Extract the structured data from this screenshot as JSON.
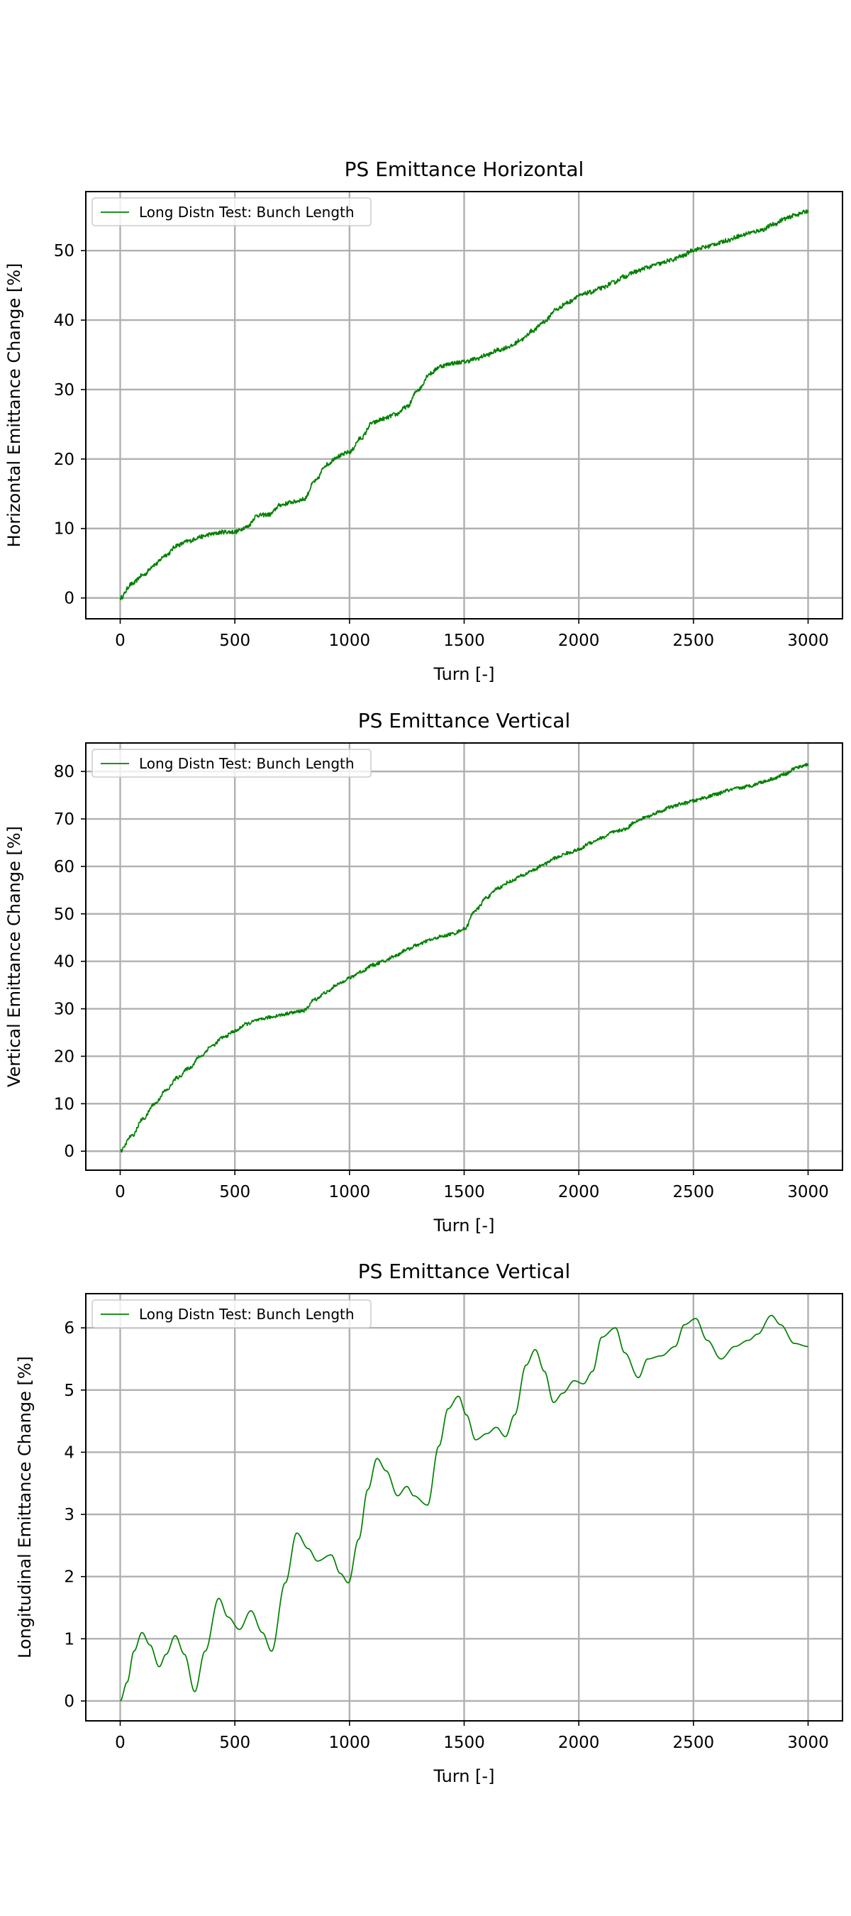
{
  "chart_data": [
    {
      "type": "line",
      "title": "PS Emittance Horizontal",
      "xlabel": "Turn [-]",
      "ylabel": "Horizontal Emittance Change [%]",
      "xlim": [
        -150,
        3150
      ],
      "ylim": [
        -3,
        58.5
      ],
      "xticks": [
        0,
        500,
        1000,
        1500,
        2000,
        2500,
        3000
      ],
      "yticks": [
        0,
        10,
        20,
        30,
        40,
        50
      ],
      "grid": true,
      "legend_position": "upper-left",
      "colors": {
        "line": "#008000",
        "grid": "#b0b0b0"
      },
      "series": [
        {
          "name": "Long Distn Test: Bunch Length",
          "noise": 0.3,
          "x": [
            0,
            50,
            100,
            150,
            200,
            250,
            300,
            350,
            400,
            450,
            500,
            550,
            600,
            650,
            700,
            750,
            800,
            850,
            900,
            950,
            1000,
            1050,
            1100,
            1150,
            1200,
            1250,
            1300,
            1350,
            1400,
            1450,
            1500,
            1550,
            1600,
            1650,
            1700,
            1750,
            1800,
            1850,
            1900,
            1950,
            2000,
            2050,
            2100,
            2150,
            2200,
            2250,
            2300,
            2350,
            2400,
            2450,
            2500,
            2550,
            2600,
            2650,
            2700,
            2750,
            2800,
            2850,
            2900,
            2950,
            3000
          ],
          "y": [
            0,
            2,
            3.3,
            4.8,
            6.2,
            7.6,
            8.2,
            8.8,
            9.2,
            9.5,
            9.5,
            10.2,
            11.9,
            12.0,
            13.4,
            13.8,
            14.2,
            16.8,
            19.2,
            20.4,
            21.0,
            23.0,
            25.2,
            25.8,
            26.4,
            27.5,
            30.0,
            32.3,
            33.4,
            33.8,
            34.0,
            34.4,
            35.0,
            35.7,
            36.2,
            37.2,
            38.5,
            39.8,
            41.5,
            42.5,
            43.5,
            44.0,
            44.6,
            45.4,
            46.3,
            47.0,
            47.6,
            48.1,
            48.6,
            49.2,
            50.1,
            50.5,
            51.0,
            51.5,
            52.1,
            52.6,
            53.0,
            53.8,
            54.6,
            55.2,
            55.7
          ]
        }
      ]
    },
    {
      "type": "line",
      "title": "PS Emittance Vertical",
      "xlabel": "Turn [-]",
      "ylabel": "Vertical Emittance Change [%]",
      "xlim": [
        -150,
        3150
      ],
      "ylim": [
        -4,
        86
      ],
      "xticks": [
        0,
        500,
        1000,
        1500,
        2000,
        2500,
        3000
      ],
      "yticks": [
        0,
        10,
        20,
        30,
        40,
        50,
        60,
        70,
        80
      ],
      "grid": true,
      "legend_position": "upper-left",
      "colors": {
        "line": "#008000",
        "grid": "#b0b0b0"
      },
      "series": [
        {
          "name": "Long Distn Test: Bunch Length",
          "noise": 0.35,
          "x": [
            0,
            50,
            100,
            150,
            200,
            250,
            300,
            350,
            400,
            450,
            500,
            550,
            600,
            650,
            700,
            750,
            800,
            850,
            900,
            950,
            1000,
            1050,
            1100,
            1150,
            1200,
            1250,
            1300,
            1350,
            1400,
            1450,
            1500,
            1550,
            1600,
            1650,
            1700,
            1750,
            1800,
            1850,
            1900,
            1950,
            2000,
            2050,
            2100,
            2150,
            2200,
            2250,
            2300,
            2350,
            2400,
            2450,
            2500,
            2550,
            2600,
            2650,
            2700,
            2750,
            2800,
            2850,
            2900,
            2950,
            3000
          ],
          "y": [
            0,
            3.2,
            6.8,
            10.0,
            12.8,
            15.5,
            17.5,
            20.0,
            22.2,
            24.0,
            25.3,
            26.8,
            27.6,
            28.2,
            28.7,
            29.2,
            29.6,
            32.0,
            33.5,
            35.2,
            36.5,
            37.8,
            39.2,
            40.0,
            41.2,
            42.5,
            43.5,
            44.5,
            45.2,
            45.8,
            46.8,
            50.8,
            53.5,
            55.5,
            56.8,
            58.0,
            59.2,
            60.5,
            61.8,
            62.8,
            63.5,
            65.0,
            66.0,
            67.2,
            67.8,
            69.5,
            70.5,
            71.5,
            72.5,
            73.2,
            73.8,
            74.5,
            75.2,
            76.0,
            76.5,
            77.0,
            77.8,
            78.5,
            79.5,
            80.8,
            81.5
          ]
        }
      ]
    },
    {
      "type": "line",
      "title": "PS Emittance Vertical",
      "xlabel": "Turn [-]",
      "ylabel": "Longitudinal Emittance Change [%]",
      "xlim": [
        -150,
        3150
      ],
      "ylim": [
        -0.32,
        6.55
      ],
      "xticks": [
        0,
        500,
        1000,
        1500,
        2000,
        2500,
        3000
      ],
      "yticks": [
        0,
        1,
        2,
        3,
        4,
        5,
        6
      ],
      "grid": true,
      "legend_position": "upper-left",
      "colors": {
        "line": "#008000",
        "grid": "#b0b0b0"
      },
      "series": [
        {
          "name": "Long Distn Test: Bunch Length",
          "noise": 0,
          "x": [
            0,
            30,
            60,
            95,
            130,
            170,
            200,
            240,
            280,
            325,
            370,
            430,
            470,
            520,
            570,
            620,
            660,
            720,
            770,
            820,
            860,
            920,
            960,
            995,
            1040,
            1080,
            1120,
            1160,
            1210,
            1250,
            1280,
            1340,
            1390,
            1430,
            1475,
            1510,
            1550,
            1600,
            1640,
            1680,
            1720,
            1770,
            1810,
            1850,
            1890,
            1930,
            1980,
            2020,
            2060,
            2100,
            2160,
            2200,
            2260,
            2300,
            2360,
            2420,
            2460,
            2510,
            2560,
            2620,
            2680,
            2740,
            2780,
            2840,
            2880,
            2940,
            3000
          ],
          "y": [
            0,
            0.3,
            0.8,
            1.1,
            0.9,
            0.55,
            0.75,
            1.05,
            0.75,
            0.15,
            0.8,
            1.65,
            1.35,
            1.15,
            1.45,
            1.1,
            0.8,
            1.9,
            2.7,
            2.45,
            2.25,
            2.35,
            2.05,
            1.9,
            2.6,
            3.4,
            3.9,
            3.7,
            3.3,
            3.45,
            3.3,
            3.15,
            4.1,
            4.7,
            4.9,
            4.6,
            4.2,
            4.3,
            4.4,
            4.25,
            4.6,
            5.4,
            5.65,
            5.3,
            4.8,
            4.95,
            5.15,
            5.1,
            5.3,
            5.85,
            6.0,
            5.6,
            5.2,
            5.5,
            5.55,
            5.7,
            6.05,
            6.15,
            5.8,
            5.5,
            5.7,
            5.8,
            5.9,
            6.2,
            6.05,
            5.75,
            5.7
          ]
        }
      ]
    }
  ]
}
